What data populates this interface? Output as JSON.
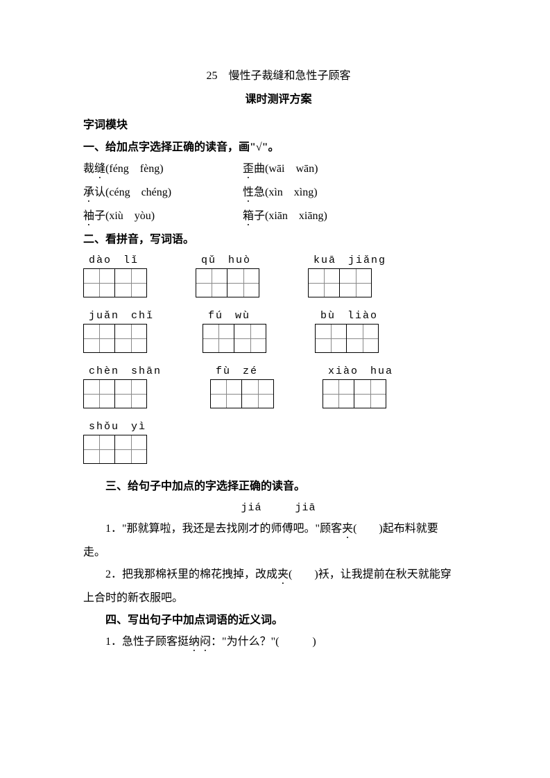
{
  "title": "25　慢性子裁缝和急性子顾客",
  "subtitle": "课时测评方案",
  "section_module": "字词模块",
  "q1": {
    "header": "一、给加点字选择正确的读音，画\"√\"。",
    "rows": [
      {
        "left_char": "裁",
        "left_dot": "缝",
        "left_py": "(féng　fèng)",
        "right_dot": "歪",
        "right_char": "曲",
        "right_py": "(wāi　wān)"
      },
      {
        "left_dot": "承",
        "left_char": "认",
        "left_py": "(céng　chéng)",
        "right_dot": "性",
        "right_char": "急",
        "right_py": "(xìn　xìng)"
      },
      {
        "left_dot": "袖",
        "left_char": "子",
        "left_py": "(xiù　yòu)",
        "right_dot": "箱",
        "right_char": "子",
        "right_py": "(xiān　xiāng)"
      }
    ]
  },
  "q2": {
    "header": "二、看拼音，写词语。",
    "rows": [
      [
        "dào　lǐ",
        "qǔ　huò",
        "kuā　jiǎng"
      ],
      [
        "juǎn　chǐ",
        "fú　wù",
        "bù　liào"
      ],
      [
        "chèn　shān",
        "fù　zé",
        "xiào　hua"
      ],
      [
        "shǒu　yì"
      ]
    ]
  },
  "q3": {
    "header": "三、给句子中加点的字选择正确的读音。",
    "options": "jiá　　　jiā",
    "item1_p1": "1．\"那就算啦，我还是去找刚才的师傅吧。\"顾客",
    "item1_dot": "夹",
    "item1_p2": "(　　)起布料就要",
    "item1_line2": "走。",
    "item2_p1": "2．把我那棉袄里的棉花拽掉，改成",
    "item2_dot": "夹",
    "item2_p2": "(　　)袄，让我提前在秋天就能穿",
    "item2_line2": "上合时的新衣服吧。"
  },
  "q4": {
    "header": "四、写出句子中加点词语的近义词。",
    "item1_p1": "1．急性子顾客挺",
    "item1_dot": "纳闷",
    "item1_p2": "：\"为什么？\"(　　　)"
  }
}
